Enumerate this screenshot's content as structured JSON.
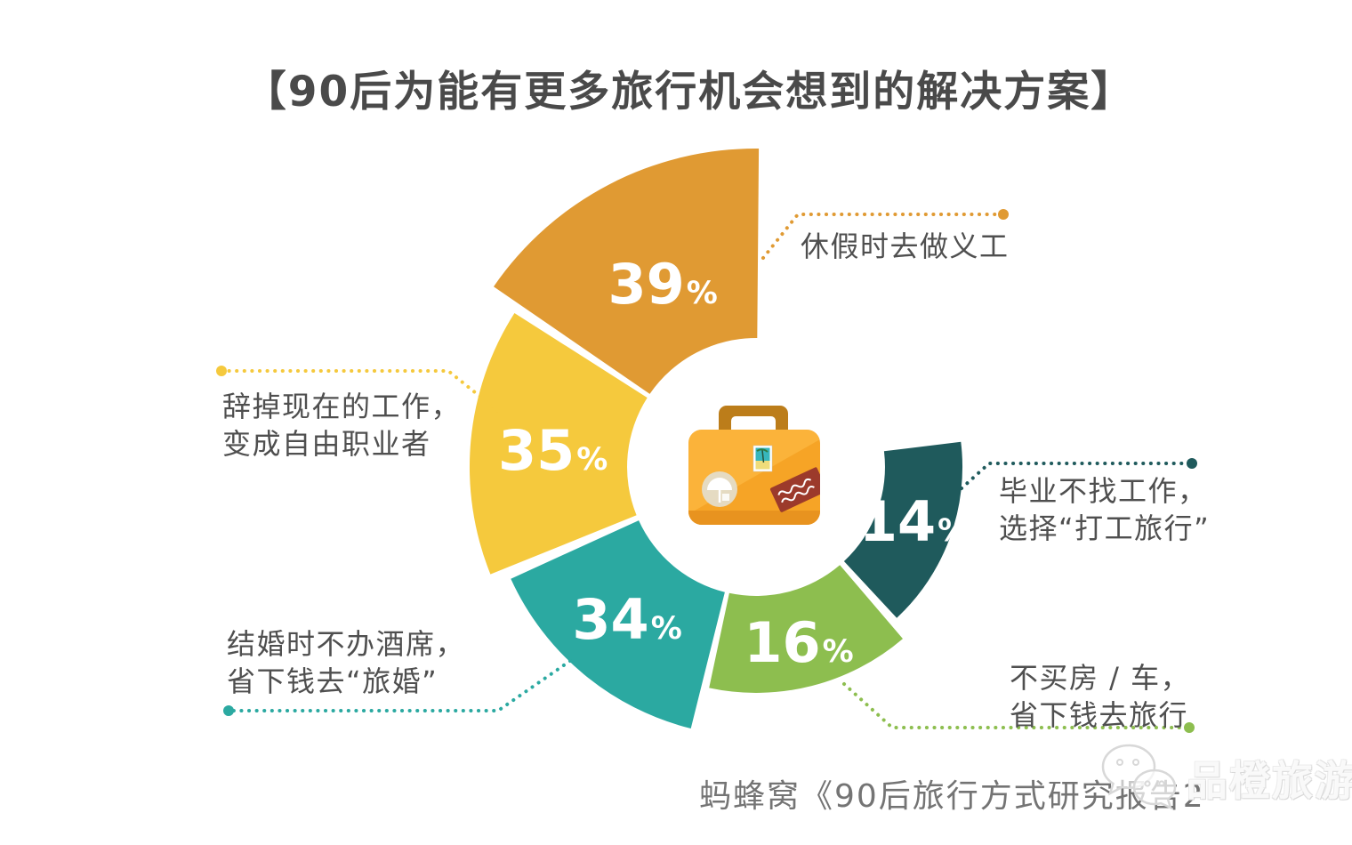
{
  "title": "【90后为能有更多旅行机会想到的解决方案】",
  "source_citation": "蚂蜂窝《90后旅行方式研究报告2",
  "watermark": {
    "logo": "wechat-icon",
    "text": "品橙旅游"
  },
  "percent_sign": "%",
  "text_colors": {
    "title": "#4A4A4A",
    "label": "#4F4F4F",
    "source": "#747474"
  },
  "chart_data": {
    "type": "pie",
    "subtype": "donut-rose",
    "title": "90后为能有更多旅行机会想到的解决方案",
    "unit": "%",
    "center_icon": "suitcase",
    "legend_position": "around-slices",
    "slices": [
      {
        "name": "volunteer",
        "value": 39,
        "color": "#E09A33",
        "label": "休假时去做义工",
        "label_lines": [
          "休假时去做义工"
        ]
      },
      {
        "name": "freelance",
        "value": 35,
        "color": "#F5C93D",
        "label": "辞掉现在的工作，变成自由职业者",
        "label_lines": [
          "辞掉现在的工作，",
          "变成自由职业者"
        ]
      },
      {
        "name": "travel-wedding",
        "value": 34,
        "color": "#2BA9A1",
        "label": "结婚时不办酒席，省下钱去“旅婚”",
        "label_lines": [
          "结婚时不办酒席，",
          "省下钱去“旅婚”"
        ]
      },
      {
        "name": "no-house-car",
        "value": 16,
        "color": "#8DBE4F",
        "label": "不买房 / 车，省下钱去旅行",
        "label_lines": [
          "不买房 / 车，",
          "省下钱去旅行"
        ]
      },
      {
        "name": "working-holiday",
        "value": 14,
        "color": "#1F5A5C",
        "label": "毕业不找工作，选择“打工旅行”",
        "label_lines": [
          "毕业不找工作，",
          "选择“打工旅行”"
        ]
      }
    ]
  }
}
